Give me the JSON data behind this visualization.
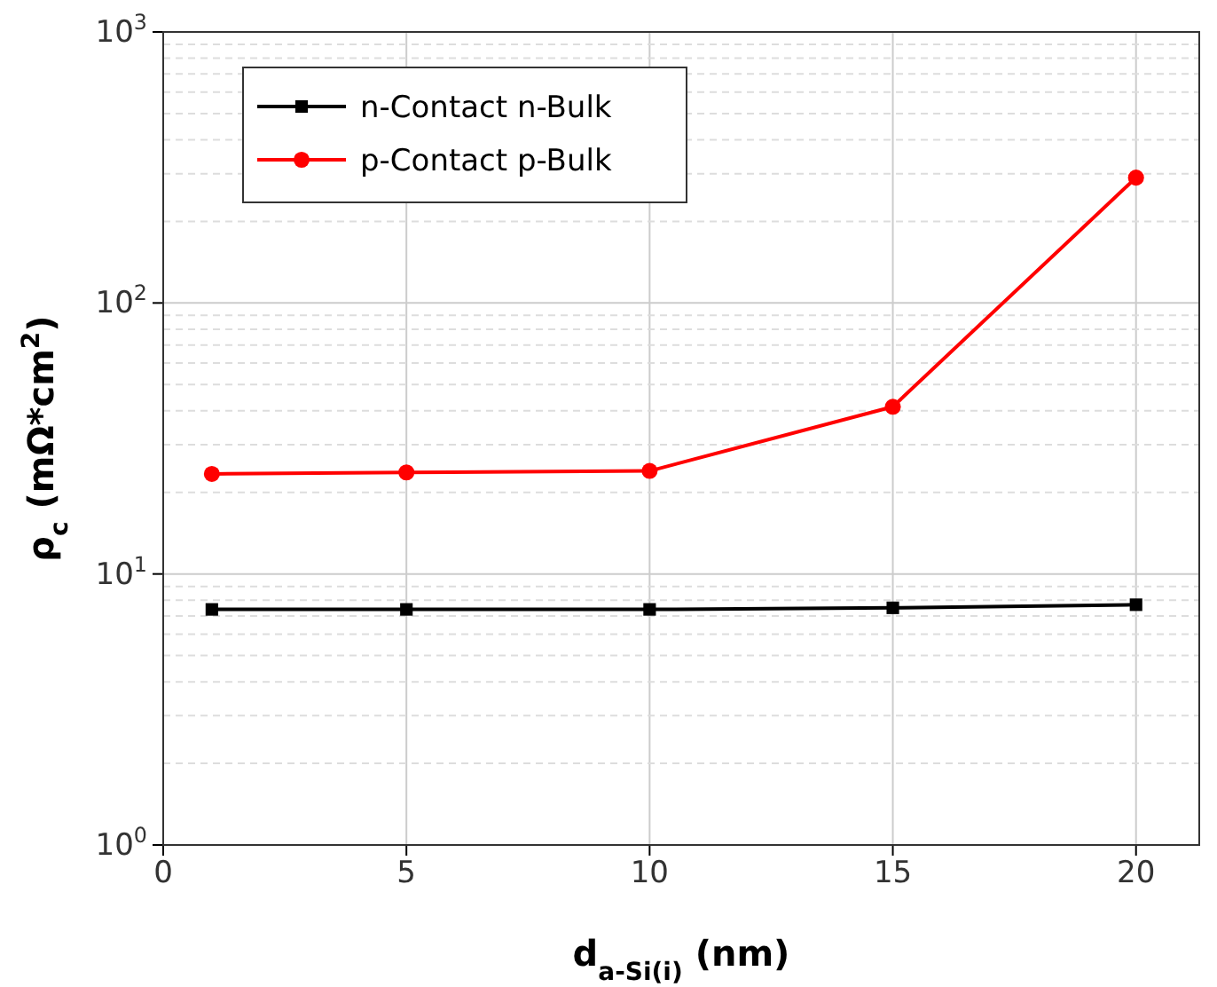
{
  "chart_data": {
    "type": "line",
    "xlabel": "d$_{a-Si(i)}$ (nm)",
    "ylabel": "ρ$_{c}$ (mΩ*cm$^{2}$)",
    "x": [
      1,
      5,
      10,
      15,
      20
    ],
    "series": [
      {
        "name": "n-Contact n-Bulk",
        "color": "#000000",
        "marker": "square",
        "values": [
          7.4,
          7.4,
          7.4,
          7.5,
          7.7
        ]
      },
      {
        "name": "p-Contact p-Bulk",
        "color": "#ff0000",
        "marker": "circle",
        "values": [
          23.4,
          23.7,
          24.0,
          41.4,
          290
        ]
      }
    ],
    "xlim": [
      0,
      21.3
    ],
    "xticks": [
      0,
      5,
      10,
      15,
      20
    ],
    "ylim": [
      1,
      1000
    ],
    "yticks": [
      {
        "value": 1,
        "label": "10$^{0}$"
      },
      {
        "value": 10,
        "label": "10$^{1}$"
      },
      {
        "value": 100,
        "label": "10$^{2}$"
      },
      {
        "value": 1000,
        "label": "10$^{3}$"
      }
    ],
    "log": "y",
    "grid": true,
    "legend": "top left",
    "line_style": "solid"
  }
}
